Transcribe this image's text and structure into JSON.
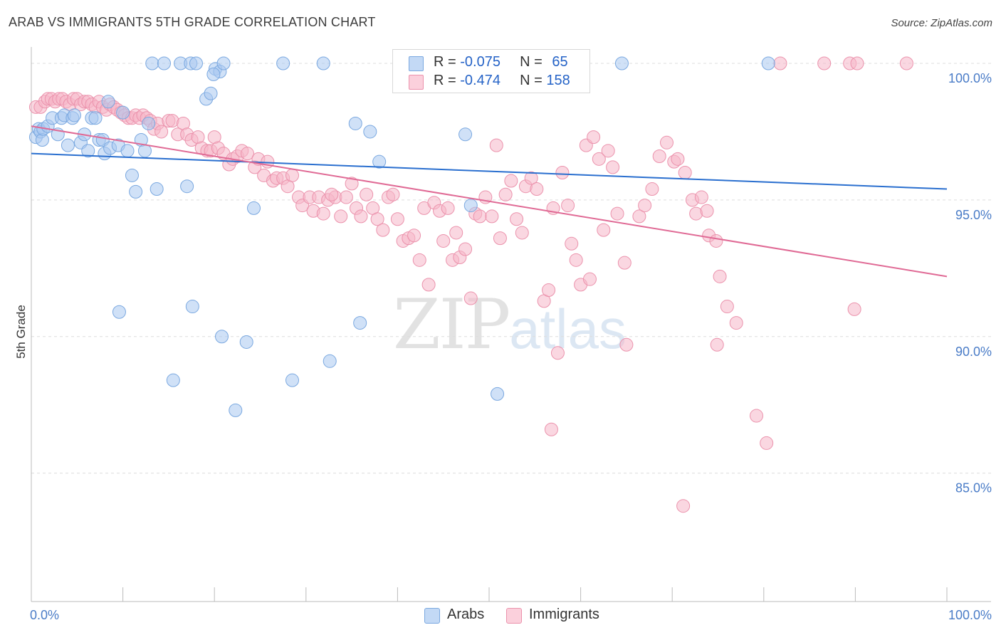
{
  "title": "ARAB VS IMMIGRANTS 5TH GRADE CORRELATION CHART",
  "source": "Source: ZipAtlas.com",
  "watermark": {
    "zip": "ZIP",
    "atlas": "atlas"
  },
  "legend": {
    "rows": [
      {
        "r_label": "R = ",
        "r_value": "-0.075",
        "n_label": "N = ",
        "n_value": "65",
        "color": "#a9c8f0"
      },
      {
        "r_label": "R = ",
        "r_value": "-0.474",
        "n_label": "N = ",
        "n_value": "158",
        "color": "#f5b7c9"
      }
    ]
  },
  "bottom_legend": [
    {
      "label": "Arabs",
      "color": "#a9c8f0"
    },
    {
      "label": "Immigrants",
      "color": "#f5b7c9"
    }
  ],
  "chart_data": {
    "type": "scatter",
    "title": "ARAB VS IMMIGRANTS 5TH GRADE CORRELATION CHART",
    "xlabel": "",
    "ylabel": "5th Grade",
    "xlim": [
      0,
      100
    ],
    "ylim": [
      80.3,
      100.6
    ],
    "y_ticks": [
      {
        "value": 85,
        "label": "85.0%"
      },
      {
        "value": 90,
        "label": "90.0%"
      },
      {
        "value": 95,
        "label": "95.0%"
      },
      {
        "value": 100,
        "label": "100.0%"
      }
    ],
    "x_tick_labels": [
      {
        "value": 0,
        "label": "0.0%"
      },
      {
        "value": 100,
        "label": "100.0%"
      }
    ],
    "grid": "horizontal dashed",
    "series": [
      {
        "name": "Arabs",
        "color": "#a9c8f0",
        "stroke": "#7aa8e0",
        "trend": {
          "x": [
            0,
            100
          ],
          "y": [
            96.7,
            95.4
          ],
          "color": "#2a6fcf"
        },
        "points": [
          [
            0.5,
            97.3
          ],
          [
            0.8,
            97.6
          ],
          [
            1.0,
            97.5
          ],
          [
            1.2,
            97.2
          ],
          [
            1.3,
            97.6
          ],
          [
            1.8,
            97.7
          ],
          [
            2.3,
            98.0
          ],
          [
            2.9,
            97.4
          ],
          [
            3.3,
            98.0
          ],
          [
            3.6,
            98.1
          ],
          [
            4.0,
            97.0
          ],
          [
            4.5,
            98.0
          ],
          [
            4.7,
            98.1
          ],
          [
            5.4,
            97.1
          ],
          [
            5.8,
            97.4
          ],
          [
            6.2,
            96.8
          ],
          [
            6.6,
            98.0
          ],
          [
            7.0,
            98.0
          ],
          [
            7.4,
            97.2
          ],
          [
            7.8,
            97.2
          ],
          [
            8.0,
            96.7
          ],
          [
            8.4,
            98.6
          ],
          [
            8.6,
            96.9
          ],
          [
            9.5,
            97.0
          ],
          [
            10.0,
            98.2
          ],
          [
            10.5,
            96.8
          ],
          [
            11.0,
            95.9
          ],
          [
            11.4,
            95.3
          ],
          [
            12.0,
            97.2
          ],
          [
            12.4,
            96.8
          ],
          [
            12.8,
            97.8
          ],
          [
            13.2,
            100.0
          ],
          [
            13.7,
            95.4
          ],
          [
            14.5,
            100.0
          ],
          [
            16.3,
            100.0
          ],
          [
            17.0,
            95.5
          ],
          [
            17.4,
            100.0
          ],
          [
            18.0,
            100.0
          ],
          [
            19.1,
            98.7
          ],
          [
            19.6,
            98.9
          ],
          [
            20.1,
            99.8
          ],
          [
            20.6,
            99.7
          ],
          [
            19.9,
            99.6
          ],
          [
            21.0,
            100.0
          ],
          [
            24.3,
            94.7
          ],
          [
            27.5,
            100.0
          ],
          [
            31.9,
            100.0
          ],
          [
            9.6,
            90.9
          ],
          [
            17.6,
            91.1
          ],
          [
            20.8,
            90.0
          ],
          [
            23.5,
            89.8
          ],
          [
            15.5,
            88.4
          ],
          [
            22.3,
            87.3
          ],
          [
            28.5,
            88.4
          ],
          [
            32.6,
            89.1
          ],
          [
            35.4,
            97.8
          ],
          [
            37.0,
            97.5
          ],
          [
            35.9,
            90.5
          ],
          [
            38.0,
            96.4
          ],
          [
            47.4,
            97.4
          ],
          [
            48.0,
            94.8
          ],
          [
            50.9,
            87.9
          ],
          [
            56.2,
            100.0
          ],
          [
            64.5,
            100.0
          ],
          [
            80.5,
            100.0
          ]
        ]
      },
      {
        "name": "Immigrants",
        "color": "#f5b7c9",
        "stroke": "#eb92ac",
        "trend": {
          "x": [
            0,
            100
          ],
          "y": [
            97.7,
            92.2
          ],
          "color": "#e06a95"
        },
        "points": [
          [
            0.5,
            98.4
          ],
          [
            1.0,
            98.4
          ],
          [
            1.5,
            98.6
          ],
          [
            1.8,
            98.7
          ],
          [
            2.2,
            98.7
          ],
          [
            2.6,
            98.6
          ],
          [
            3.0,
            98.7
          ],
          [
            3.4,
            98.7
          ],
          [
            3.8,
            98.6
          ],
          [
            4.2,
            98.5
          ],
          [
            4.6,
            98.7
          ],
          [
            5.0,
            98.7
          ],
          [
            5.4,
            98.5
          ],
          [
            5.8,
            98.6
          ],
          [
            6.2,
            98.6
          ],
          [
            6.6,
            98.5
          ],
          [
            7.0,
            98.4
          ],
          [
            7.4,
            98.6
          ],
          [
            7.8,
            98.4
          ],
          [
            8.2,
            98.3
          ],
          [
            8.6,
            98.5
          ],
          [
            9.0,
            98.4
          ],
          [
            9.4,
            98.3
          ],
          [
            9.8,
            98.2
          ],
          [
            10.2,
            98.1
          ],
          [
            10.6,
            98.0
          ],
          [
            11.0,
            98.0
          ],
          [
            11.4,
            98.1
          ],
          [
            11.8,
            98.0
          ],
          [
            12.2,
            98.1
          ],
          [
            12.6,
            98.0
          ],
          [
            13.0,
            97.9
          ],
          [
            13.4,
            97.6
          ],
          [
            13.8,
            97.8
          ],
          [
            14.2,
            97.5
          ],
          [
            15.0,
            97.9
          ],
          [
            15.4,
            97.9
          ],
          [
            16.0,
            97.4
          ],
          [
            16.6,
            97.8
          ],
          [
            17.0,
            97.4
          ],
          [
            17.5,
            97.2
          ],
          [
            18.2,
            97.3
          ],
          [
            18.6,
            96.9
          ],
          [
            19.2,
            96.8
          ],
          [
            19.6,
            96.8
          ],
          [
            20.0,
            97.3
          ],
          [
            20.4,
            96.9
          ],
          [
            21.0,
            96.7
          ],
          [
            21.6,
            96.3
          ],
          [
            22.0,
            96.5
          ],
          [
            22.5,
            96.6
          ],
          [
            23.0,
            96.8
          ],
          [
            23.6,
            96.7
          ],
          [
            24.4,
            96.2
          ],
          [
            24.8,
            96.5
          ],
          [
            25.4,
            95.9
          ],
          [
            25.8,
            96.4
          ],
          [
            26.4,
            95.7
          ],
          [
            26.8,
            95.8
          ],
          [
            27.5,
            95.8
          ],
          [
            28.0,
            95.5
          ],
          [
            28.5,
            95.9
          ],
          [
            29.2,
            95.1
          ],
          [
            29.6,
            94.8
          ],
          [
            30.4,
            95.1
          ],
          [
            30.8,
            94.6
          ],
          [
            31.4,
            95.1
          ],
          [
            31.9,
            94.5
          ],
          [
            32.4,
            95.0
          ],
          [
            33.2,
            95.1
          ],
          [
            33.8,
            94.4
          ],
          [
            34.4,
            95.1
          ],
          [
            35.0,
            95.6
          ],
          [
            35.5,
            94.7
          ],
          [
            36.0,
            94.4
          ],
          [
            36.6,
            95.2
          ],
          [
            37.3,
            94.7
          ],
          [
            37.8,
            94.3
          ],
          [
            38.4,
            93.9
          ],
          [
            39.0,
            95.1
          ],
          [
            39.5,
            95.2
          ],
          [
            40.0,
            94.3
          ],
          [
            40.6,
            93.5
          ],
          [
            41.2,
            93.6
          ],
          [
            41.8,
            93.7
          ],
          [
            42.4,
            92.8
          ],
          [
            42.9,
            94.7
          ],
          [
            43.4,
            91.9
          ],
          [
            44.0,
            94.9
          ],
          [
            44.6,
            94.6
          ],
          [
            45.0,
            93.5
          ],
          [
            45.5,
            94.7
          ],
          [
            46.0,
            92.8
          ],
          [
            46.4,
            93.8
          ],
          [
            46.8,
            92.9
          ],
          [
            47.4,
            93.2
          ],
          [
            48.0,
            91.4
          ],
          [
            48.5,
            94.5
          ],
          [
            49.0,
            94.4
          ],
          [
            49.6,
            95.1
          ],
          [
            50.3,
            94.4
          ],
          [
            50.8,
            97.0
          ],
          [
            51.2,
            93.6
          ],
          [
            51.8,
            95.2
          ],
          [
            52.4,
            95.7
          ],
          [
            53.0,
            94.3
          ],
          [
            53.6,
            93.8
          ],
          [
            54.0,
            95.5
          ],
          [
            54.6,
            95.8
          ],
          [
            55.2,
            95.4
          ],
          [
            56.0,
            91.3
          ],
          [
            56.5,
            91.7
          ],
          [
            57.0,
            94.7
          ],
          [
            57.5,
            89.4
          ],
          [
            58.0,
            96.0
          ],
          [
            58.6,
            94.8
          ],
          [
            59.0,
            93.4
          ],
          [
            59.5,
            92.8
          ],
          [
            60.0,
            91.9
          ],
          [
            60.6,
            97.0
          ],
          [
            61.0,
            92.1
          ],
          [
            61.4,
            97.3
          ],
          [
            62.0,
            96.5
          ],
          [
            62.5,
            93.9
          ],
          [
            63.0,
            96.8
          ],
          [
            63.5,
            96.2
          ],
          [
            64.0,
            94.5
          ],
          [
            64.8,
            92.7
          ],
          [
            65.0,
            89.7
          ],
          [
            66.4,
            94.4
          ],
          [
            67.0,
            94.8
          ],
          [
            67.8,
            95.4
          ],
          [
            68.6,
            96.6
          ],
          [
            69.4,
            97.1
          ],
          [
            70.2,
            96.4
          ],
          [
            70.6,
            96.5
          ],
          [
            71.4,
            96.0
          ],
          [
            72.2,
            95.0
          ],
          [
            72.6,
            94.5
          ],
          [
            73.2,
            95.1
          ],
          [
            73.8,
            94.6
          ],
          [
            74.0,
            93.7
          ],
          [
            74.8,
            93.5
          ],
          [
            75.2,
            92.2
          ],
          [
            76.0,
            91.1
          ],
          [
            77.0,
            90.5
          ],
          [
            79.2,
            87.1
          ],
          [
            80.3,
            86.1
          ],
          [
            81.8,
            100.0
          ],
          [
            86.6,
            100.0
          ],
          [
            89.4,
            100.0
          ],
          [
            90.2,
            100.0
          ],
          [
            95.6,
            100.0
          ],
          [
            74.9,
            89.7
          ],
          [
            71.2,
            83.8
          ],
          [
            56.8,
            86.6
          ],
          [
            89.9,
            91.0
          ],
          [
            32.8,
            95.2
          ]
        ]
      }
    ]
  }
}
